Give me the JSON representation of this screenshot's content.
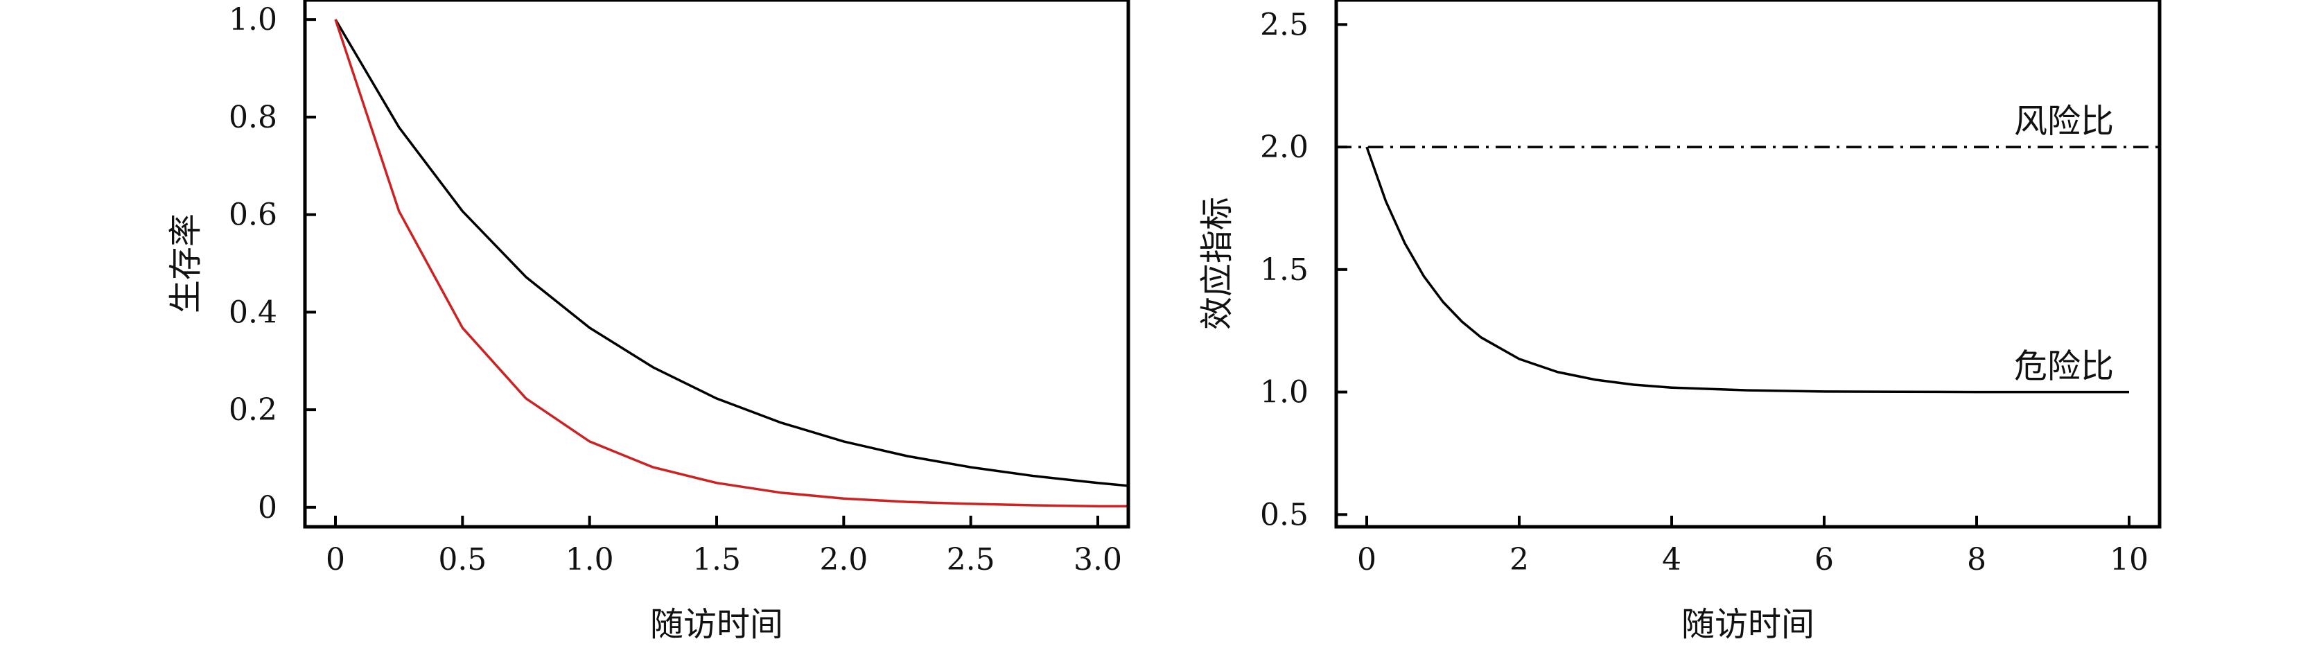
{
  "chart_data": [
    {
      "type": "line",
      "title": "",
      "xlabel": "随访时间",
      "ylabel": "生存率",
      "xlim": [
        -0.12,
        3.12
      ],
      "ylim": [
        -0.04,
        1.04
      ],
      "xticks": [
        0,
        0.5,
        1.0,
        1.5,
        2.0,
        2.5,
        3.0
      ],
      "xtick_labels": [
        "0",
        "0.5",
        "1.0",
        "1.5",
        "2.0",
        "2.5",
        "3.0"
      ],
      "yticks": [
        0,
        0.2,
        0.4,
        0.6,
        0.8,
        1.0
      ],
      "ytick_labels": [
        "0",
        "0.2",
        "0.4",
        "0.6",
        "0.8",
        "1.0"
      ],
      "grid": false,
      "legend": "none",
      "series": [
        {
          "color": "#000000",
          "x": [
            0,
            0.25,
            0.5,
            0.75,
            1.0,
            1.25,
            1.5,
            1.75,
            2.0,
            2.25,
            2.5,
            2.75,
            3.0,
            3.12
          ],
          "y": [
            1.0,
            0.779,
            0.607,
            0.472,
            0.368,
            0.287,
            0.223,
            0.174,
            0.135,
            0.105,
            0.082,
            0.064,
            0.05,
            0.044
          ]
        },
        {
          "color": "#cc2222",
          "x": [
            0,
            0.25,
            0.5,
            0.75,
            1.0,
            1.25,
            1.5,
            1.75,
            2.0,
            2.25,
            2.5,
            2.75,
            3.0,
            3.12
          ],
          "y": [
            1.0,
            0.607,
            0.368,
            0.223,
            0.135,
            0.082,
            0.05,
            0.03,
            0.018,
            0.011,
            0.007,
            0.004,
            0.002,
            0.002
          ]
        }
      ]
    },
    {
      "type": "line",
      "title": "",
      "xlabel": "随访时间",
      "ylabel": "效应指标",
      "xlim": [
        -0.4,
        10.4
      ],
      "ylim": [
        0.45,
        2.6
      ],
      "xticks": [
        0,
        2,
        4,
        6,
        8,
        10
      ],
      "xtick_labels": [
        "0",
        "2",
        "4",
        "6",
        "8",
        "10"
      ],
      "yticks": [
        0.5,
        1.0,
        1.5,
        2.0,
        2.5
      ],
      "ytick_labels": [
        "0.5",
        "1.0",
        "1.5",
        "2.0",
        "2.5"
      ],
      "grid": false,
      "legend": "none",
      "series": [
        {
          "style": "dash-dot",
          "color": "#000000",
          "x": [
            -0.4,
            10.4
          ],
          "y": [
            2.0,
            2.0
          ]
        },
        {
          "style": "solid",
          "color": "#000000",
          "x": [
            0,
            0.25,
            0.5,
            0.75,
            1.0,
            1.25,
            1.5,
            2.0,
            2.5,
            3.0,
            3.5,
            4.0,
            5.0,
            6.0,
            7.0,
            8.0,
            9.0,
            10.0
          ],
          "y": [
            2.0,
            1.779,
            1.607,
            1.472,
            1.368,
            1.287,
            1.223,
            1.135,
            1.082,
            1.05,
            1.03,
            1.018,
            1.007,
            1.002,
            1.001,
            1.0,
            1.0,
            1.0
          ]
        }
      ],
      "annotations": [
        {
          "text": "风险比",
          "x": 9.8,
          "y": 2.06
        },
        {
          "text": "危险比",
          "x": 9.8,
          "y": 1.06
        }
      ]
    }
  ]
}
